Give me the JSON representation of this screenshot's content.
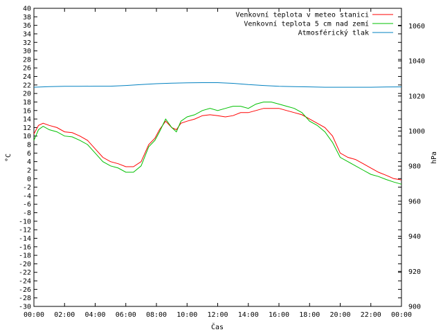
{
  "chart_data": {
    "type": "line",
    "xlabel": "Čas",
    "ylabel_left": "°C",
    "ylabel_right": "hPa",
    "x_ticks": [
      "00:00",
      "02:00",
      "04:00",
      "06:00",
      "08:00",
      "10:00",
      "12:00",
      "14:00",
      "16:00",
      "18:00",
      "20:00",
      "22:00",
      "00:00"
    ],
    "x_range_hours": [
      0,
      24
    ],
    "y_left_range": [
      -30,
      40
    ],
    "y_left_ticks": [
      40,
      38,
      36,
      34,
      32,
      30,
      28,
      26,
      24,
      22,
      20,
      18,
      16,
      14,
      12,
      10,
      8,
      6,
      4,
      2,
      0,
      -2,
      -4,
      -6,
      -8,
      -10,
      -12,
      -14,
      -16,
      -18,
      -20,
      -22,
      -24,
      -26,
      -28,
      -30
    ],
    "y_right_range": [
      900,
      1070
    ],
    "y_right_ticks": [
      1060,
      1040,
      1020,
      1000,
      980,
      960,
      940,
      920,
      900
    ],
    "grid": false,
    "legend_position": "top-right",
    "series": [
      {
        "name": "Venkovní teplota v meteo stanici",
        "axis": "left",
        "color": "#ff0000",
        "points": [
          [
            0,
            10.5
          ],
          [
            0.3,
            12.5
          ],
          [
            0.6,
            13
          ],
          [
            1,
            12.5
          ],
          [
            1.5,
            12
          ],
          [
            2,
            11
          ],
          [
            2.5,
            10.8
          ],
          [
            3,
            10
          ],
          [
            3.5,
            9
          ],
          [
            4,
            7
          ],
          [
            4.5,
            5
          ],
          [
            5,
            4
          ],
          [
            5.5,
            3.5
          ],
          [
            6,
            2.8
          ],
          [
            6.5,
            2.8
          ],
          [
            7,
            4
          ],
          [
            7.5,
            8
          ],
          [
            7.9,
            9.5
          ],
          [
            8.2,
            11.5
          ],
          [
            8.6,
            13.5
          ],
          [
            9,
            12
          ],
          [
            9.3,
            11.5
          ],
          [
            9.6,
            13
          ],
          [
            10,
            13.5
          ],
          [
            10.5,
            14
          ],
          [
            11,
            14.8
          ],
          [
            11.5,
            15
          ],
          [
            12,
            14.8
          ],
          [
            12.5,
            14.5
          ],
          [
            13,
            14.8
          ],
          [
            13.5,
            15.5
          ],
          [
            14,
            15.5
          ],
          [
            14.5,
            16
          ],
          [
            15,
            16.5
          ],
          [
            15.5,
            16.5
          ],
          [
            16,
            16.5
          ],
          [
            16.5,
            16
          ],
          [
            17,
            15.5
          ],
          [
            17.5,
            15
          ],
          [
            18,
            14
          ],
          [
            18.5,
            13
          ],
          [
            19,
            12
          ],
          [
            19.5,
            10
          ],
          [
            20,
            6
          ],
          [
            20.5,
            5
          ],
          [
            21,
            4.5
          ],
          [
            21.5,
            3.5
          ],
          [
            22,
            2.5
          ],
          [
            22.5,
            1.5
          ],
          [
            23,
            0.8
          ],
          [
            23.5,
            0
          ],
          [
            24,
            -0.3
          ]
        ]
      },
      {
        "name": "Venkovní teplota 5 cm nad zemí",
        "axis": "left",
        "color": "#00c000",
        "points": [
          [
            0,
            9
          ],
          [
            0.3,
            11.5
          ],
          [
            0.6,
            12.3
          ],
          [
            1,
            11.5
          ],
          [
            1.5,
            11
          ],
          [
            2,
            10
          ],
          [
            2.5,
            9.8
          ],
          [
            3,
            9
          ],
          [
            3.5,
            8
          ],
          [
            4,
            6
          ],
          [
            4.5,
            4
          ],
          [
            5,
            3
          ],
          [
            5.5,
            2.5
          ],
          [
            6,
            1.5
          ],
          [
            6.5,
            1.5
          ],
          [
            7,
            3
          ],
          [
            7.5,
            7.5
          ],
          [
            7.9,
            9
          ],
          [
            8.2,
            11
          ],
          [
            8.6,
            14
          ],
          [
            9,
            12
          ],
          [
            9.3,
            11
          ],
          [
            9.6,
            13.5
          ],
          [
            10,
            14.5
          ],
          [
            10.5,
            15
          ],
          [
            11,
            16
          ],
          [
            11.5,
            16.5
          ],
          [
            12,
            16
          ],
          [
            12.5,
            16.5
          ],
          [
            13,
            17
          ],
          [
            13.5,
            17
          ],
          [
            14,
            16.5
          ],
          [
            14.5,
            17.5
          ],
          [
            15,
            18
          ],
          [
            15.5,
            18
          ],
          [
            16,
            17.5
          ],
          [
            16.5,
            17
          ],
          [
            17,
            16.5
          ],
          [
            17.5,
            15.5
          ],
          [
            18,
            13.5
          ],
          [
            18.5,
            12.5
          ],
          [
            19,
            11
          ],
          [
            19.5,
            8.5
          ],
          [
            20,
            5
          ],
          [
            20.5,
            4
          ],
          [
            21,
            3
          ],
          [
            21.5,
            2
          ],
          [
            22,
            1
          ],
          [
            22.5,
            0.5
          ],
          [
            23,
            -0.2
          ],
          [
            23.5,
            -0.8
          ],
          [
            24,
            -1.3
          ]
        ]
      },
      {
        "name": "Atmosférický tlak",
        "axis": "right",
        "color": "#0080c0",
        "points": [
          [
            0,
            1025
          ],
          [
            1,
            1025.3
          ],
          [
            2,
            1025.5
          ],
          [
            3,
            1025.5
          ],
          [
            4,
            1025.6
          ],
          [
            5,
            1025.6
          ],
          [
            6,
            1026
          ],
          [
            7,
            1026.5
          ],
          [
            8,
            1027
          ],
          [
            9,
            1027.3
          ],
          [
            10,
            1027.5
          ],
          [
            11,
            1027.6
          ],
          [
            12,
            1027.6
          ],
          [
            13,
            1027.2
          ],
          [
            14,
            1026.5
          ],
          [
            15,
            1026
          ],
          [
            16,
            1025.5
          ],
          [
            17,
            1025.3
          ],
          [
            18,
            1025.2
          ],
          [
            19,
            1025
          ],
          [
            20,
            1025
          ],
          [
            21,
            1025
          ],
          [
            22,
            1025
          ],
          [
            23,
            1025.1
          ],
          [
            24,
            1025.2
          ]
        ]
      }
    ]
  }
}
